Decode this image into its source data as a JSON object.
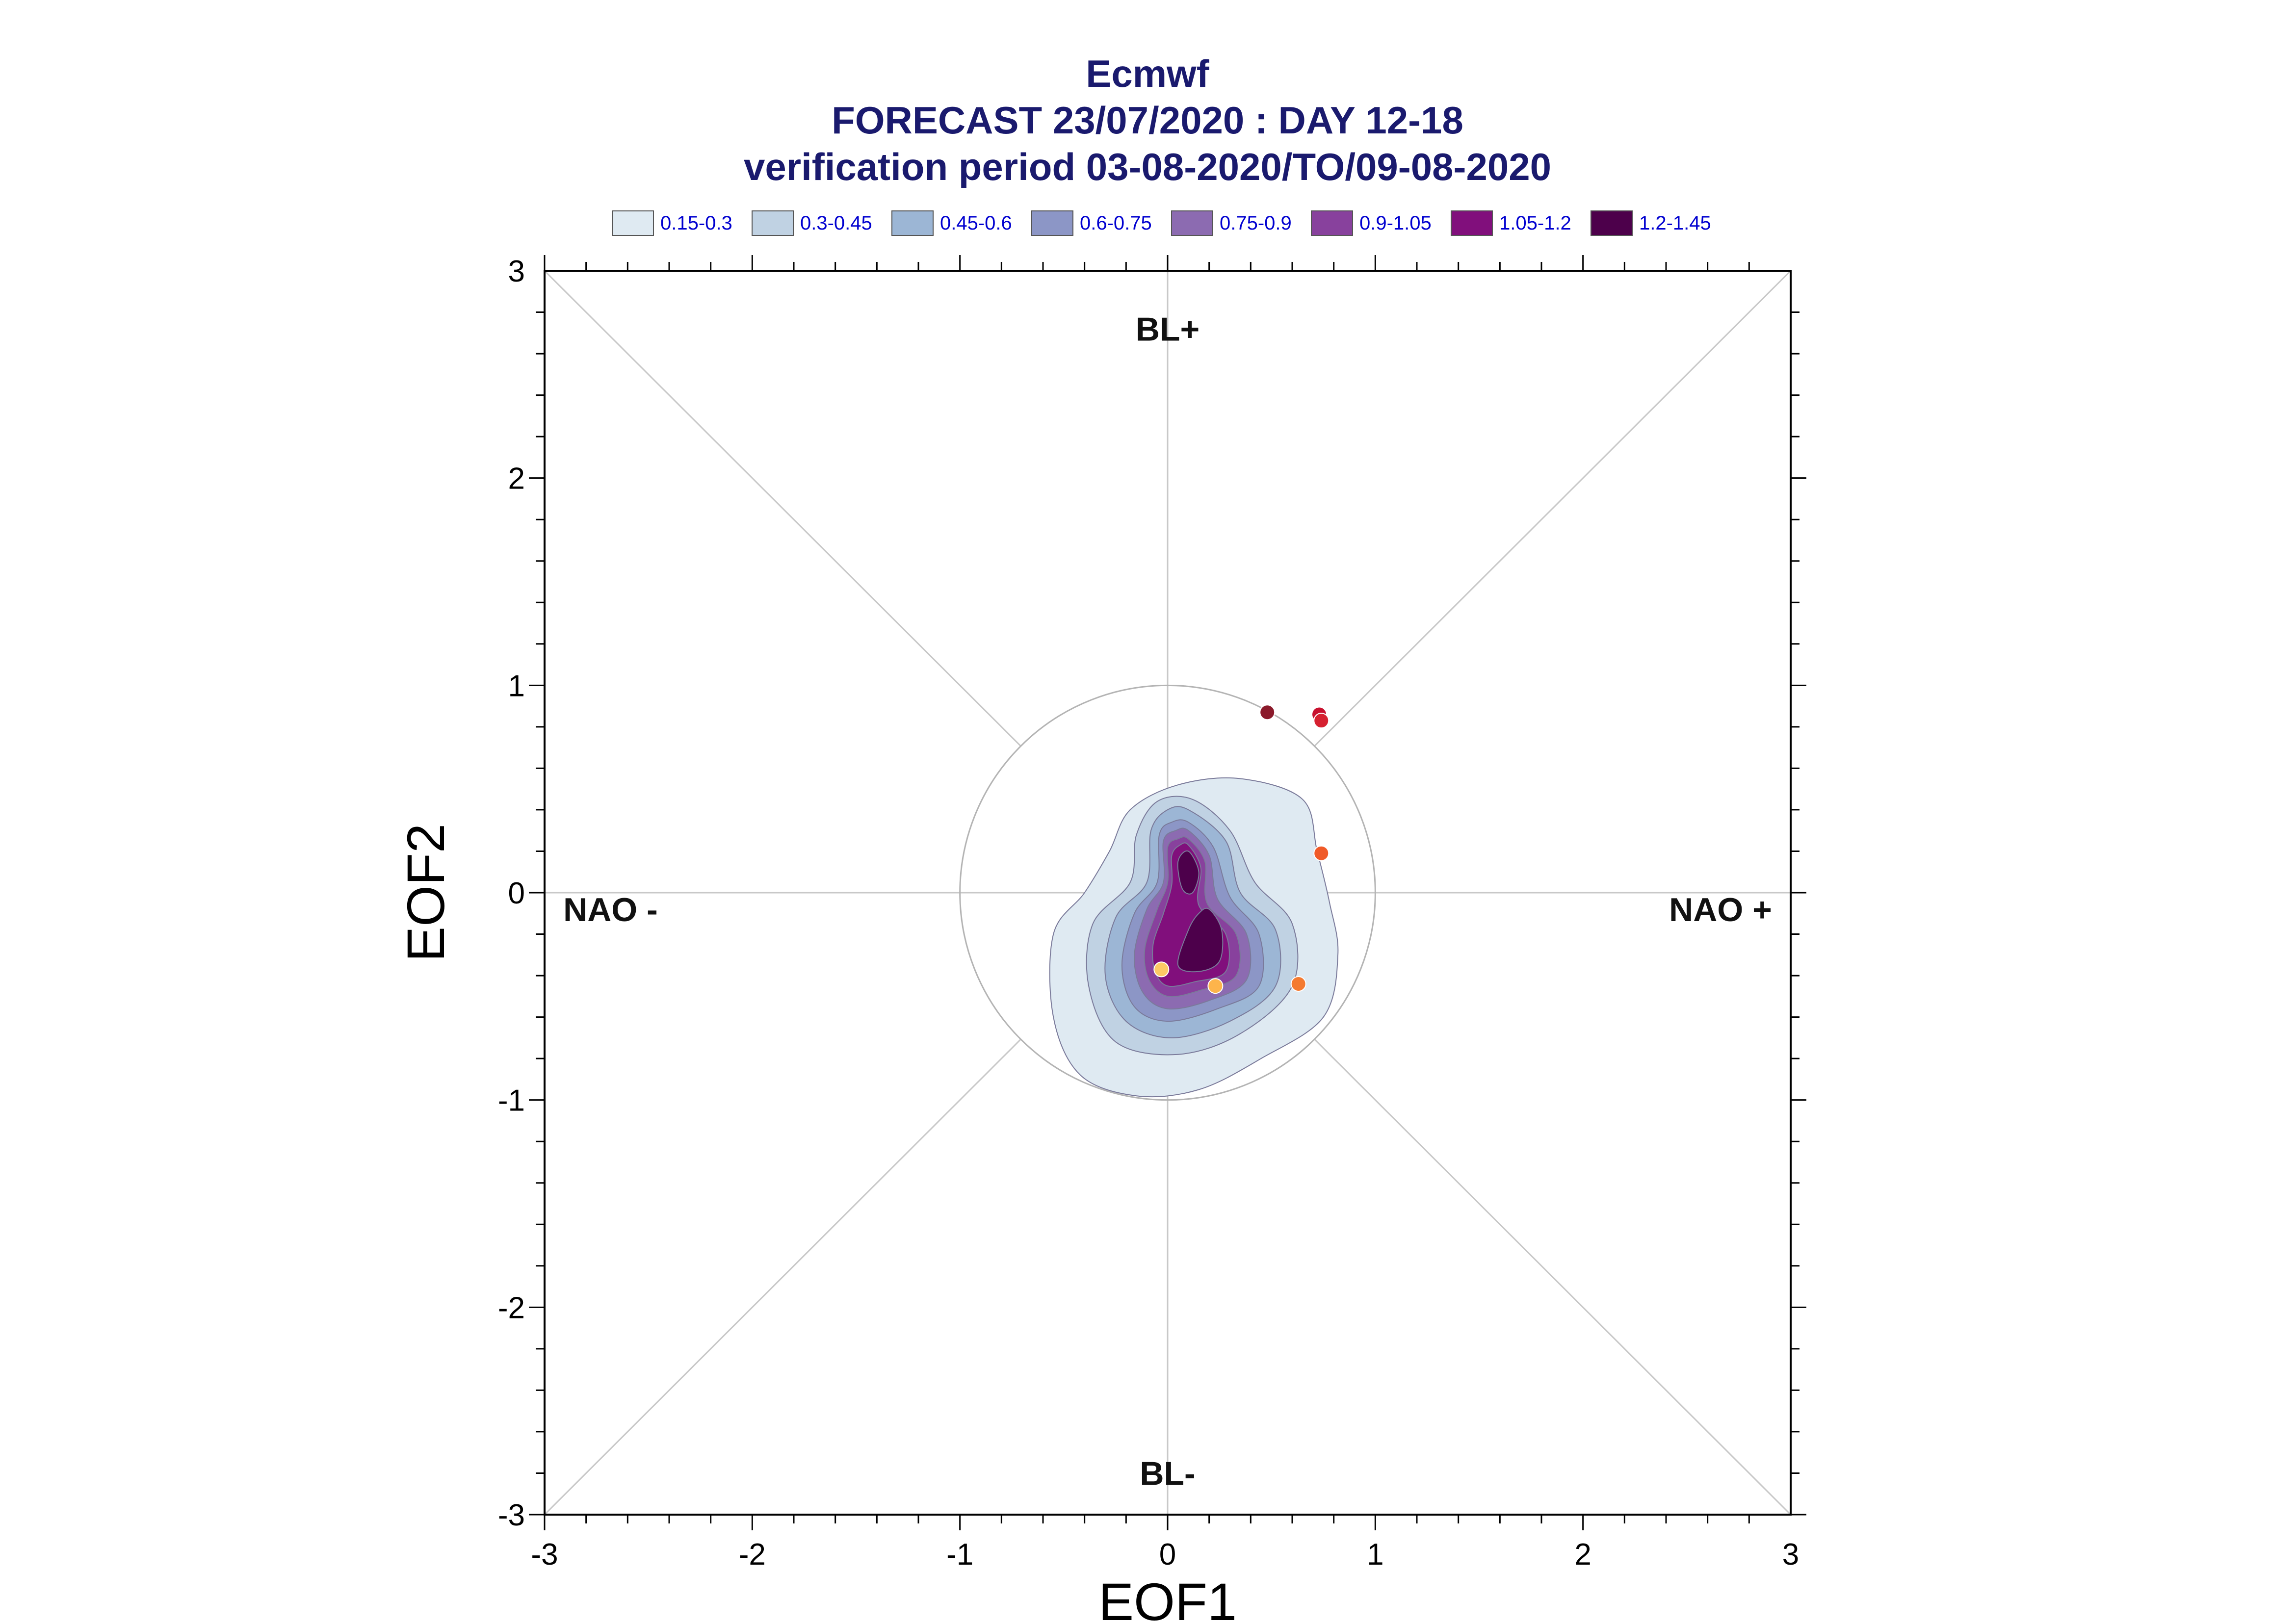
{
  "chart_data": {
    "type": "scatter",
    "title_lines": [
      "Ecmwf",
      "FORECAST 23/07/2020 : DAY 12-18",
      "verification period 03-08-2020/TO/09-08-2020"
    ],
    "xlabel": "EOF1",
    "ylabel": "EOF2",
    "xlim": [
      -3,
      3
    ],
    "ylim": [
      -3,
      3
    ],
    "xticks": [
      "-3",
      "-2",
      "-1",
      "0",
      "1",
      "2",
      "3"
    ],
    "yticks": [
      "-3",
      "-2",
      "-1",
      "0",
      "1",
      "2",
      "3"
    ],
    "regime_labels": {
      "top": "BL+",
      "bottom": "BL-",
      "left": "NAO -",
      "right": "NAO +"
    },
    "reference_circle_radius": 1,
    "legend": [
      {
        "label": "0.15-0.3",
        "color": "#dfeaf2"
      },
      {
        "label": "0.3-0.45",
        "color": "#c0d2e3"
      },
      {
        "label": "0.45-0.6",
        "color": "#9cb6d5"
      },
      {
        "label": "0.6-0.75",
        "color": "#8c96c6"
      },
      {
        "label": "0.75-0.9",
        "color": "#8c6bb1"
      },
      {
        "label": "0.9-1.05",
        "color": "#88419d"
      },
      {
        "label": "1.05-1.2",
        "color": "#810f7c"
      },
      {
        "label": "1.2-1.45",
        "color": "#4d004b"
      }
    ],
    "density_contours": [
      {
        "level": "0.15-0.3",
        "color": "#dfeaf2",
        "points": [
          [
            0.35,
            0.55
          ],
          [
            0.65,
            0.45
          ],
          [
            0.72,
            0.2
          ],
          [
            0.78,
            -0.05
          ],
          [
            0.82,
            -0.3
          ],
          [
            0.75,
            -0.6
          ],
          [
            0.45,
            -0.8
          ],
          [
            0.15,
            -0.95
          ],
          [
            -0.15,
            -0.98
          ],
          [
            -0.42,
            -0.88
          ],
          [
            -0.55,
            -0.6
          ],
          [
            -0.55,
            -0.2
          ],
          [
            -0.4,
            0.0
          ],
          [
            -0.28,
            0.2
          ],
          [
            -0.18,
            0.4
          ],
          [
            0.05,
            0.52
          ]
        ]
      },
      {
        "level": "0.3-0.45",
        "color": "#c0d2e3",
        "points": [
          [
            0.12,
            0.45
          ],
          [
            0.3,
            0.3
          ],
          [
            0.42,
            0.05
          ],
          [
            0.6,
            -0.15
          ],
          [
            0.6,
            -0.45
          ],
          [
            0.35,
            -0.68
          ],
          [
            0.05,
            -0.78
          ],
          [
            -0.25,
            -0.72
          ],
          [
            -0.38,
            -0.45
          ],
          [
            -0.36,
            -0.15
          ],
          [
            -0.18,
            0.05
          ],
          [
            -0.15,
            0.28
          ],
          [
            -0.05,
            0.44
          ]
        ]
      },
      {
        "level": "0.45-0.6",
        "color": "#9cb6d5",
        "points": [
          [
            0.1,
            0.4
          ],
          [
            0.28,
            0.25
          ],
          [
            0.35,
            0.0
          ],
          [
            0.52,
            -0.18
          ],
          [
            0.52,
            -0.45
          ],
          [
            0.3,
            -0.62
          ],
          [
            0.02,
            -0.7
          ],
          [
            -0.2,
            -0.62
          ],
          [
            -0.3,
            -0.4
          ],
          [
            -0.25,
            -0.12
          ],
          [
            -0.1,
            0.05
          ],
          [
            -0.08,
            0.3
          ],
          [
            0.0,
            0.4
          ]
        ]
      },
      {
        "level": "0.6-0.75",
        "color": "#8c96c6",
        "points": [
          [
            0.1,
            0.34
          ],
          [
            0.22,
            0.22
          ],
          [
            0.3,
            -0.02
          ],
          [
            0.44,
            -0.2
          ],
          [
            0.44,
            -0.45
          ],
          [
            0.24,
            -0.56
          ],
          [
            0.0,
            -0.62
          ],
          [
            -0.16,
            -0.55
          ],
          [
            -0.22,
            -0.35
          ],
          [
            -0.16,
            -0.1
          ],
          [
            -0.05,
            0.05
          ],
          [
            -0.04,
            0.28
          ],
          [
            0.02,
            0.34
          ]
        ]
      },
      {
        "level": "0.75-0.9",
        "color": "#8c6bb1",
        "points": [
          [
            0.1,
            0.3
          ],
          [
            0.2,
            0.18
          ],
          [
            0.24,
            -0.03
          ],
          [
            0.38,
            -0.2
          ],
          [
            0.38,
            -0.42
          ],
          [
            0.2,
            -0.52
          ],
          [
            0.0,
            -0.56
          ],
          [
            -0.12,
            -0.48
          ],
          [
            -0.16,
            -0.3
          ],
          [
            -0.1,
            -0.08
          ],
          [
            -0.02,
            0.05
          ],
          [
            -0.02,
            0.25
          ],
          [
            0.04,
            0.3
          ]
        ]
      },
      {
        "level": "0.9-1.05",
        "color": "#88419d",
        "points": [
          [
            0.1,
            0.26
          ],
          [
            0.18,
            0.15
          ],
          [
            0.19,
            -0.05
          ],
          [
            0.33,
            -0.2
          ],
          [
            0.33,
            -0.4
          ],
          [
            0.16,
            -0.47
          ],
          [
            0.0,
            -0.5
          ],
          [
            -0.09,
            -0.42
          ],
          [
            -0.11,
            -0.27
          ],
          [
            -0.05,
            -0.08
          ],
          [
            0.0,
            0.05
          ],
          [
            0.0,
            0.22
          ],
          [
            0.05,
            0.26
          ]
        ]
      },
      {
        "level": "1.05-1.2",
        "color": "#810f7c",
        "points": [
          [
            0.1,
            0.23
          ],
          [
            0.16,
            0.12
          ],
          [
            0.15,
            -0.06
          ],
          [
            0.28,
            -0.2
          ],
          [
            0.28,
            -0.38
          ],
          [
            0.13,
            -0.43
          ],
          [
            0.0,
            -0.45
          ],
          [
            -0.06,
            -0.38
          ],
          [
            -0.07,
            -0.25
          ],
          [
            -0.02,
            -0.1
          ],
          [
            0.02,
            0.04
          ],
          [
            0.02,
            0.18
          ],
          [
            0.06,
            0.23
          ]
        ]
      },
      {
        "level": "1.2-1.45",
        "color": "#4d004b",
        "points": [
          [
            0.1,
            0.2
          ],
          [
            0.15,
            0.1
          ],
          [
            0.12,
            0.0
          ],
          [
            0.07,
            0.02
          ],
          [
            0.05,
            0.15
          ]
        ]
      },
      {
        "level": "1.2-1.45",
        "color": "#4d004b",
        "points": [
          [
            0.2,
            -0.08
          ],
          [
            0.26,
            -0.18
          ],
          [
            0.25,
            -0.33
          ],
          [
            0.15,
            -0.38
          ],
          [
            0.05,
            -0.35
          ],
          [
            0.1,
            -0.18
          ],
          [
            0.15,
            -0.1
          ]
        ]
      }
    ],
    "points": [
      {
        "x": 0.48,
        "y": 0.87,
        "color": "#8b1a2b"
      },
      {
        "x": 0.73,
        "y": 0.86,
        "color": "#c8102e"
      },
      {
        "x": 0.74,
        "y": 0.83,
        "color": "#d62030"
      },
      {
        "x": 0.74,
        "y": 0.19,
        "color": "#f05a28"
      },
      {
        "x": 0.63,
        "y": -0.44,
        "color": "#f47a30"
      },
      {
        "x": -0.03,
        "y": -0.37,
        "color": "#fdc965"
      },
      {
        "x": 0.23,
        "y": -0.45,
        "color": "#fdb44b"
      }
    ]
  }
}
